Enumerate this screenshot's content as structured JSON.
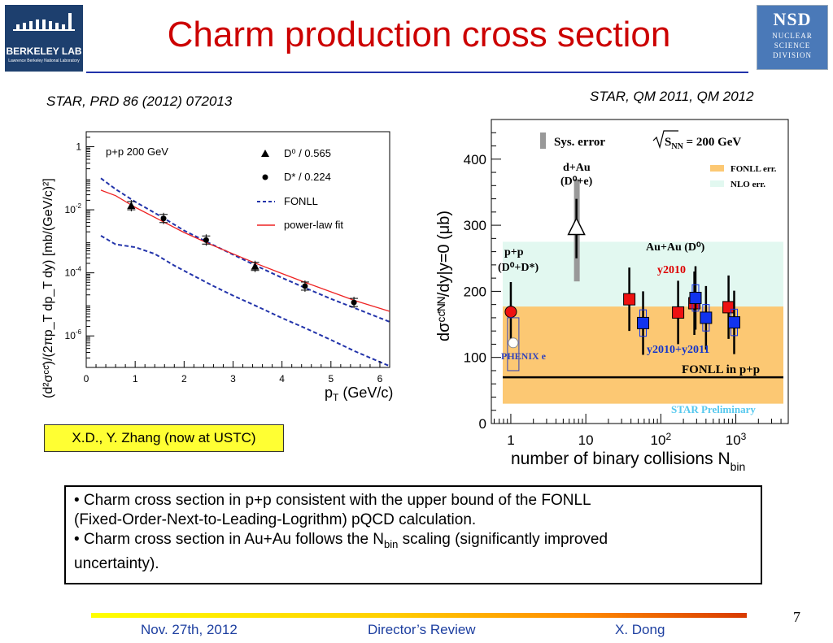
{
  "header": {
    "title": "Charm production cross section",
    "left_logo_text": "BERKELEY LAB",
    "left_logo_subtext": "Lawrence Berkeley National Laboratory",
    "right_logo": {
      "abbr": "NSD",
      "lines": [
        "NUCLEAR",
        "SCIENCE",
        "DIVISION"
      ]
    }
  },
  "citations": {
    "left": "STAR, PRD 86 (2012) 072013",
    "right": "STAR, QM 2011, QM 2012"
  },
  "credit": "X.D., Y. Zhang (now at USTC)",
  "bullets": {
    "b1_line1": "• Charm cross section in p+p consistent with the upper bound of the FONLL",
    "b1_line2": "(Fixed-Order-Next-to-Leading-Logrithm) pQCD calculation.",
    "b2_pre": "• Charm cross section in Au+Au follows the N",
    "b2_sub": "bin",
    "b2_post": " scaling (significantly improved",
    "b2_line2": "uncertainty)."
  },
  "footer": {
    "date": "Nov. 27th, 2012",
    "event": "Director’s Review",
    "author": "X. Dong",
    "page": "7"
  },
  "chart_data": [
    {
      "type": "scatter",
      "log_y": true,
      "xlim": [
        0,
        6.2
      ],
      "ylim": [
        1e-07,
        3
      ],
      "xticks": [
        "0",
        "1",
        "2",
        "3",
        "4",
        "5",
        "6"
      ],
      "yticks": [
        {
          "value": 1,
          "base": "1",
          "exp": ""
        },
        {
          "value": 0.01,
          "base": "10",
          "exp": "-2"
        },
        {
          "value": 0.0001,
          "base": "10",
          "exp": "-4"
        },
        {
          "value": 1e-06,
          "base": "10",
          "exp": "-6"
        }
      ],
      "xlabel": {
        "pre": "p",
        "sub": "T",
        "post": " (GeV/c)"
      },
      "ylabel": "(d²σᶜᶜ̄)/(2πp_T dp_T dy) [mb/(GeV/c)²]",
      "annotation": "p+p 200 GeV",
      "legend": [
        "D⁰ / 0.565",
        "D* / 0.224",
        "FONLL",
        "power-law fit"
      ],
      "series": [
        {
          "name": "D⁰ / 0.565",
          "marker": "triangle",
          "x": [
            0.92,
            3.45
          ],
          "y": [
            0.0135,
            0.00016
          ]
        },
        {
          "name": "D* / 0.224",
          "marker": "circle",
          "x": [
            1.58,
            2.45,
            4.47,
            5.47
          ],
          "y": [
            0.0053,
            0.0011,
            3.8e-05,
            1.15e-05
          ]
        },
        {
          "name": "FONLL",
          "style": "dashed",
          "color": "#2233aa",
          "x": [
            0.3,
            0.6,
            1,
            1.5,
            2,
            2.5,
            3,
            3.5,
            4,
            4.5,
            5,
            5.5,
            6.2
          ],
          "y": [
            0.1,
            0.045,
            0.018,
            0.0065,
            0.0022,
            0.0009,
            0.00038,
            0.00016,
            7e-05,
            3.2e-05,
            1.5e-05,
            7.5e-06,
            2.8e-06
          ]
        },
        {
          "name": "FONLL",
          "style": "dashed",
          "color": "#2233aa",
          "x": [
            0.3,
            0.6,
            1,
            1.4,
            1.8,
            2.2,
            2.6,
            3,
            3.5,
            4,
            4.5,
            5,
            5.5,
            6.2
          ],
          "y": [
            0.0015,
            0.0008,
            0.00065,
            0.0004,
            0.00017,
            8e-05,
            3.8e-05,
            1.9e-05,
            8.5e-06,
            3.7e-06,
            1.7e-06,
            7.5e-07,
            3.2e-07,
            1.1e-07
          ]
        },
        {
          "name": "power-law fit",
          "style": "solid",
          "color": "#ee2222",
          "x": [
            0.3,
            0.6,
            1,
            1.5,
            2,
            2.5,
            3,
            3.5,
            4,
            4.5,
            5,
            5.5,
            6.2
          ],
          "y": [
            0.042,
            0.028,
            0.012,
            0.0048,
            0.0019,
            0.00085,
            0.0004,
            0.00019,
            9.5e-05,
            4.8e-05,
            2.5e-05,
            1.3e-05,
            6e-06
          ]
        }
      ]
    },
    {
      "type": "scatter",
      "log_x": true,
      "xlim": [
        0.55,
        5000
      ],
      "ylim": [
        0,
        460
      ],
      "xticks": [
        {
          "value": 1,
          "base": "1",
          "exp": ""
        },
        {
          "value": 10,
          "base": "10",
          "exp": ""
        },
        {
          "value": 100,
          "base": "10",
          "exp": "2"
        },
        {
          "value": 1000,
          "base": "10",
          "exp": "3"
        }
      ],
      "yticks": [
        0,
        100,
        200,
        300,
        400
      ],
      "xlabel": {
        "pre": "number of binary collisions N",
        "sub": "bin"
      },
      "ylabel": "dσᶜᶜ̄ᴺᴺ/dy|y=0 (μb)",
      "bands": [
        {
          "name": "NLO err.",
          "range": [
            30,
            275
          ],
          "color": "#e2f8f0"
        },
        {
          "name": "FONLL err.",
          "range": [
            30,
            177
          ],
          "color": "#fcc873"
        }
      ],
      "fonll_line": {
        "name": "FONLL in p+p",
        "y": 70
      },
      "labels": {
        "sys_error": "Sys. error",
        "energy": "S",
        "energy_sub": "NN",
        "energy_value": " = 200 GeV",
        "dau1": "d+Au",
        "dau2": "(D⁰+e)",
        "pp1": "p+p",
        "pp2": "(D⁰+D*)",
        "auau": "Au+Au (D⁰)",
        "y2010": "y2010",
        "y2010_2011": "y2010+y2011",
        "phenix": "PHENIX e",
        "fonll_pp": "FONLL in p+p",
        "star_prelim": "STAR Preliminary",
        "fonll_err": "FONLL err.",
        "nlo_err": "NLO err."
      },
      "series": [
        {
          "name": "y2010",
          "marker": "square",
          "color": "#ee1111",
          "x": [
            38,
            170,
            280,
            800
          ],
          "y": [
            188,
            168,
            182,
            176
          ]
        },
        {
          "name": "y2010+y2011",
          "marker": "square",
          "color": "#1133ee",
          "x": [
            58,
            290,
            400,
            950
          ],
          "y": [
            152,
            190,
            160,
            153
          ]
        },
        {
          "name": "p+p",
          "marker": "circle",
          "color": "#ee1111",
          "x": [
            1
          ],
          "y": [
            169
          ]
        },
        {
          "name": "PHENIX e",
          "marker": "circle",
          "color": "#ffffff",
          "x": [
            1.05
          ],
          "y": [
            122
          ]
        },
        {
          "name": "d+Au",
          "marker": "triangle",
          "color": "#ffffff",
          "x": [
            7.5
          ],
          "y": [
            297
          ]
        }
      ]
    }
  ]
}
